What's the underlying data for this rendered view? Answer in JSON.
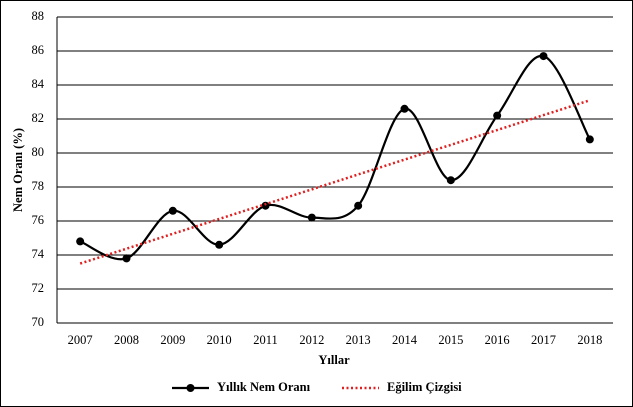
{
  "chart_data": {
    "type": "line",
    "smooth": true,
    "x_label": "Yıllar",
    "y_label": "Nem Oranı (%)",
    "categories": [
      "2007",
      "2008",
      "2009",
      "2010",
      "2011",
      "2012",
      "2013",
      "2014",
      "2015",
      "2016",
      "2017",
      "2018"
    ],
    "series": [
      {
        "name": "Yıllık Nem Oranı",
        "color": "#000000",
        "style": "solid",
        "markers": true,
        "values": [
          74.8,
          73.8,
          76.6,
          74.6,
          76.9,
          76.2,
          76.9,
          82.6,
          78.4,
          82.2,
          85.7,
          80.8
        ]
      },
      {
        "name": "Eğilim Çizgisi",
        "color": "#e02020",
        "style": "dotted",
        "markers": false,
        "smooth": false,
        "values": [
          73.5,
          74.37,
          75.25,
          76.12,
          76.99,
          77.86,
          78.74,
          79.61,
          80.48,
          81.35,
          82.23,
          83.1
        ]
      }
    ],
    "ylim": [
      70,
      88
    ],
    "yticks": [
      70,
      72,
      74,
      76,
      78,
      80,
      82,
      84,
      86,
      88
    ],
    "grid": true,
    "legend": "bottom"
  }
}
